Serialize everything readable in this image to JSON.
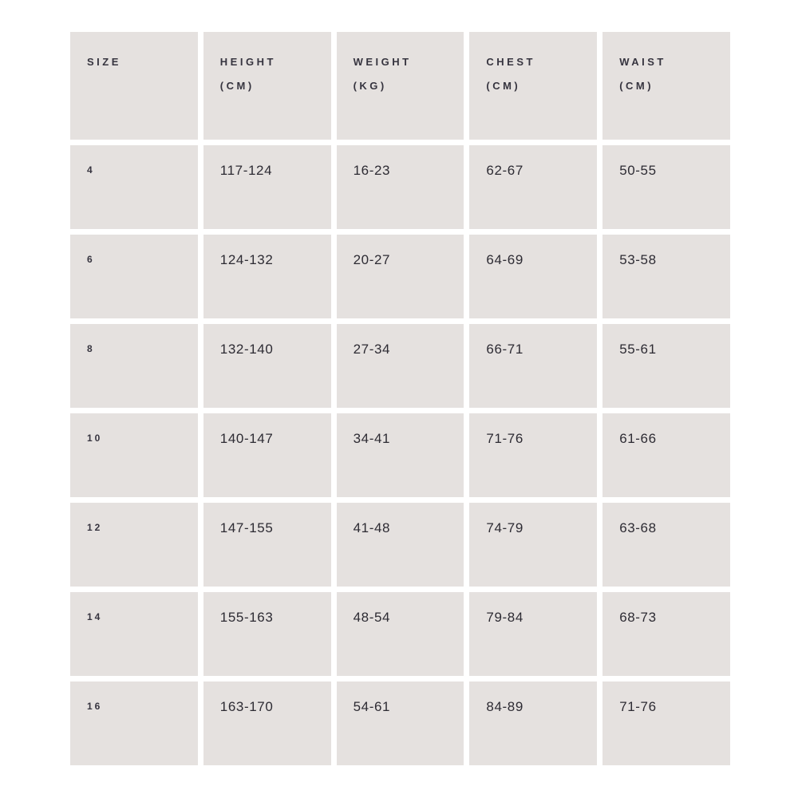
{
  "chart_data": {
    "type": "table",
    "columns": [
      {
        "label": "SIZE",
        "unit": ""
      },
      {
        "label": "HEIGHT",
        "unit": "(CM)"
      },
      {
        "label": "WEIGHT",
        "unit": "(KG)"
      },
      {
        "label": "CHEST",
        "unit": "(CM)"
      },
      {
        "label": "WAIST",
        "unit": "(CM)"
      }
    ],
    "rows": [
      [
        "4",
        "117-124",
        "16-23",
        "62-67",
        "50-55"
      ],
      [
        "6",
        "124-132",
        "20-27",
        "64-69",
        "53-58"
      ],
      [
        "8",
        "132-140",
        "27-34",
        "66-71",
        "55-61"
      ],
      [
        "10",
        "140-147",
        "34-41",
        "71-76",
        "61-66"
      ],
      [
        "12",
        "147-155",
        "41-48",
        "74-79",
        "63-68"
      ],
      [
        "14",
        "155-163",
        "48-54",
        "79-84",
        "68-73"
      ],
      [
        "16",
        "163-170",
        "54-61",
        "84-89",
        "71-76"
      ]
    ]
  },
  "colors": {
    "page_bg": "#ffffff",
    "cell_bg": "#e5e1df",
    "header_text": "#36343f",
    "value_text": "#2d2b33"
  }
}
